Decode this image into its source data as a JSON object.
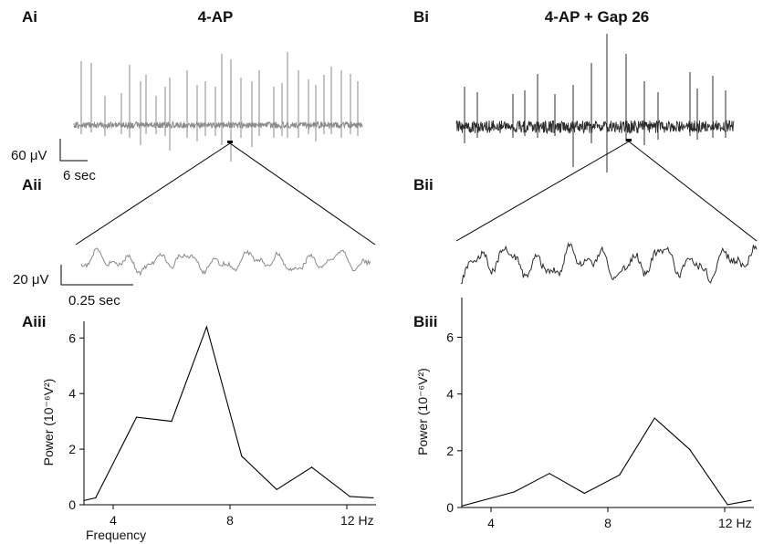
{
  "labels": {
    "Ai": "Ai",
    "Aii": "Aii",
    "Aiii": "Aiii",
    "Bi": "Bi",
    "Bii": "Bii",
    "Biii": "Biii"
  },
  "titles": {
    "a": "4-AP",
    "b": "4-AP + Gap 26"
  },
  "scalebars": {
    "a_raw_voltage": "60 μV",
    "a_raw_time": "6 sec",
    "a_zoom_voltage": "20 μV",
    "a_zoom_time": "0.25 sec"
  },
  "colors": {
    "trace_a": "#8a8a8a",
    "trace_b": "#2b2b2b",
    "line": "#000000"
  },
  "chart_data": [
    {
      "type": "line",
      "panel": "Aiii",
      "ylabel": "Power (10⁻⁶V²)",
      "xlabel": "Frequency",
      "x_tick_labels": [
        "4",
        "8",
        "12 Hz"
      ],
      "x_ticks": [
        4,
        8,
        12
      ],
      "y_ticks": [
        0,
        2,
        4,
        6
      ],
      "xlim": [
        3,
        13
      ],
      "ylim": [
        0,
        6.6
      ],
      "x": [
        3.0,
        3.4,
        4.8,
        6.0,
        7.2,
        8.4,
        9.6,
        10.8,
        12.1,
        12.9
      ],
      "y": [
        0.15,
        0.25,
        3.15,
        3.0,
        6.4,
        1.75,
        0.55,
        1.35,
        0.3,
        0.25
      ]
    },
    {
      "type": "line",
      "panel": "Biii",
      "ylabel": "Power (10⁻⁶V²)",
      "xlabel": "",
      "x_tick_labels": [
        "4",
        "8",
        "12 Hz"
      ],
      "x_ticks": [
        4,
        8,
        12
      ],
      "y_ticks": [
        0,
        2,
        4,
        6
      ],
      "xlim": [
        3,
        13
      ],
      "ylim": [
        0,
        7.4
      ],
      "x": [
        3.0,
        4.8,
        6.0,
        7.2,
        8.4,
        9.6,
        10.8,
        12.1,
        12.9
      ],
      "y": [
        0.05,
        0.55,
        1.2,
        0.5,
        1.15,
        3.15,
        2.05,
        0.1,
        0.25
      ]
    }
  ]
}
